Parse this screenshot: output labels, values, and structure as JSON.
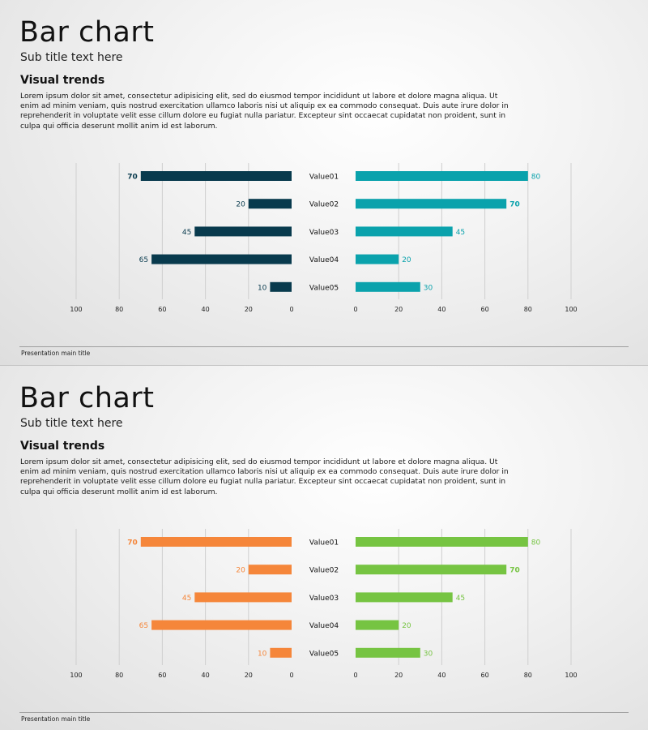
{
  "slides": [
    {
      "title": "Bar chart",
      "subtitle": "Sub title text here",
      "heading": "Visual trends",
      "body": "Lorem ipsum dolor sit amet, consectetur adipisicing elit, sed do eiusmod tempor incididunt ut labore et dolore magna aliqua. Ut enim ad minim veniam, quis nostrud exercitation ullamco laboris nisi ut aliquip ex ea commodo consequat. Duis aute irure dolor in reprehenderit in voluptate velit esse cillum dolore eu fugiat nulla pariatur. Excepteur sint occaecat cupidatat non proident, sunt in culpa qui officia deserunt mollit anim id est laborum.",
      "footer": "Presentation main title",
      "colors": {
        "left": "#083a4d",
        "right": "#0aa2ac"
      }
    },
    {
      "title": "Bar chart",
      "subtitle": "Sub title text here",
      "heading": "Visual trends",
      "body": "Lorem ipsum dolor sit amet, consectetur adipisicing elit, sed do eiusmod tempor incididunt ut labore et dolore magna aliqua. Ut enim ad minim veniam, quis nostrud exercitation ullamco laboris nisi ut aliquip ex ea commodo consequat. Duis aute irure dolor in reprehenderit in voluptate velit esse cillum dolore eu fugiat nulla pariatur. Excepteur sint occaecat cupidatat non proident, sunt in culpa qui officia deserunt mollit anim id est laborum.",
      "footer": "Presentation main title",
      "colors": {
        "left": "#f5863a",
        "right": "#76c442"
      }
    }
  ],
  "chart_data": [
    {
      "type": "bar",
      "orientation": "horizontal",
      "layout": "butterfly",
      "categories": [
        "Value01",
        "Value02",
        "Value03",
        "Value04",
        "Value05"
      ],
      "series": [
        {
          "values": [
            70,
            20,
            45,
            65,
            10
          ],
          "color": "#083a4d",
          "side": "left"
        },
        {
          "values": [
            80,
            70,
            45,
            20,
            30
          ],
          "color": "#0aa2ac",
          "side": "right"
        }
      ],
      "xlim": [
        0,
        100
      ],
      "ticks": [
        0,
        20,
        40,
        60,
        80,
        100
      ],
      "grid": true,
      "bold_labels": {
        "left": [
          70
        ],
        "right": [
          70
        ]
      }
    },
    {
      "type": "bar",
      "orientation": "horizontal",
      "layout": "butterfly",
      "categories": [
        "Value01",
        "Value02",
        "Value03",
        "Value04",
        "Value05"
      ],
      "series": [
        {
          "values": [
            70,
            20,
            45,
            65,
            10
          ],
          "color": "#f5863a",
          "side": "left"
        },
        {
          "values": [
            80,
            70,
            45,
            20,
            30
          ],
          "color": "#76c442",
          "side": "right"
        }
      ],
      "xlim": [
        0,
        100
      ],
      "ticks": [
        0,
        20,
        40,
        60,
        80,
        100
      ],
      "grid": true,
      "bold_labels": {
        "left": [
          70
        ],
        "right": [
          70
        ]
      }
    }
  ]
}
